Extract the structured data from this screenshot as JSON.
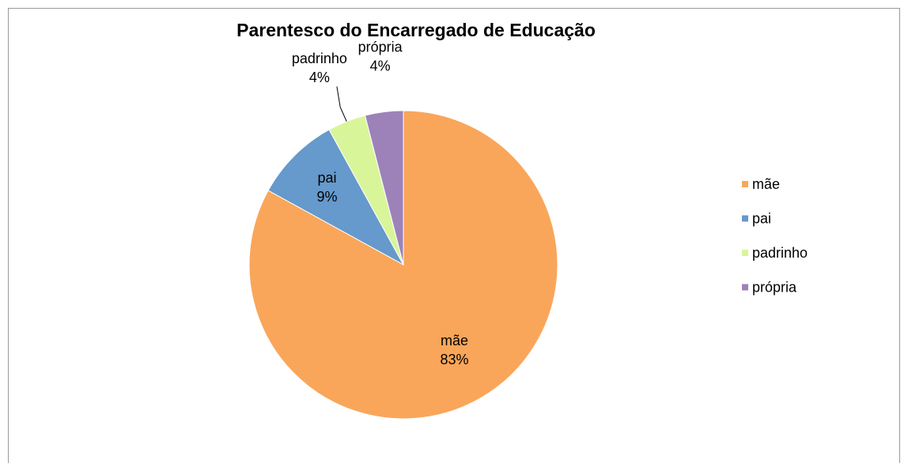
{
  "chart_data": {
    "type": "pie",
    "title": "Parentesco do Encarregado de Educação",
    "categories": [
      "mãe",
      "pai",
      "padrinho",
      "própria"
    ],
    "values": [
      83,
      9,
      4,
      4
    ],
    "value_labels": [
      "83%",
      "9%",
      "4%",
      "4%"
    ],
    "colors": [
      "#f9a65a",
      "#6699cc",
      "#d9f59a",
      "#9c82b8"
    ],
    "legend": "right"
  }
}
